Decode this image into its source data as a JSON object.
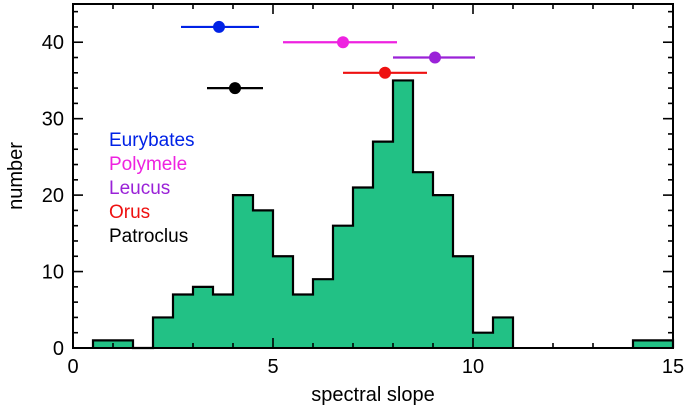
{
  "chart_data": {
    "type": "histogram",
    "xlabel": "spectral slope",
    "ylabel": "number",
    "xlim": [
      0,
      15
    ],
    "ylim": [
      0,
      45
    ],
    "x_ticks": [
      0,
      5,
      10,
      15
    ],
    "y_ticks": [
      0,
      10,
      20,
      30,
      40
    ],
    "grid": false,
    "bar_color": "#22c185",
    "bins": [
      {
        "x0": 0.5,
        "x1": 1.5,
        "value": 1
      },
      {
        "x0": 1.5,
        "x1": 2.0,
        "value": 0
      },
      {
        "x0": 2.0,
        "x1": 2.5,
        "value": 4
      },
      {
        "x0": 2.5,
        "x1": 3.0,
        "value": 7
      },
      {
        "x0": 3.0,
        "x1": 3.5,
        "value": 8
      },
      {
        "x0": 3.5,
        "x1": 4.0,
        "value": 7
      },
      {
        "x0": 4.0,
        "x1": 4.5,
        "value": 20
      },
      {
        "x0": 4.5,
        "x1": 5.0,
        "value": 18
      },
      {
        "x0": 5.0,
        "x1": 5.5,
        "value": 12
      },
      {
        "x0": 5.5,
        "x1": 6.0,
        "value": 7
      },
      {
        "x0": 6.0,
        "x1": 6.5,
        "value": 9
      },
      {
        "x0": 6.5,
        "x1": 7.0,
        "value": 16
      },
      {
        "x0": 7.0,
        "x1": 7.5,
        "value": 21
      },
      {
        "x0": 7.5,
        "x1": 8.0,
        "value": 27
      },
      {
        "x0": 8.0,
        "x1": 8.5,
        "value": 35
      },
      {
        "x0": 8.5,
        "x1": 9.0,
        "value": 23
      },
      {
        "x0": 9.0,
        "x1": 9.5,
        "value": 20
      },
      {
        "x0": 9.5,
        "x1": 10.0,
        "value": 12
      },
      {
        "x0": 10.0,
        "x1": 10.5,
        "value": 2
      },
      {
        "x0": 10.5,
        "x1": 11.0,
        "value": 4
      },
      {
        "x0": 14.0,
        "x1": 15.0,
        "value": 1
      }
    ],
    "series": [
      {
        "name": "Eurybates",
        "color": "#0022e6",
        "x": 3.65,
        "xmin": 2.7,
        "xmax": 4.65,
        "y": 42
      },
      {
        "name": "Polymele",
        "color": "#ee22e0",
        "x": 6.75,
        "xmin": 5.25,
        "xmax": 8.1,
        "y": 40
      },
      {
        "name": "Leucus",
        "color": "#9a22d8",
        "x": 9.05,
        "xmin": 8.0,
        "xmax": 10.05,
        "y": 38
      },
      {
        "name": "Orus",
        "color": "#ee1111",
        "x": 7.8,
        "xmin": 6.75,
        "xmax": 8.85,
        "y": 36
      },
      {
        "name": "Patroclus",
        "color": "#000000",
        "x": 4.05,
        "xmin": 3.35,
        "xmax": 4.75,
        "y": 34
      }
    ]
  }
}
